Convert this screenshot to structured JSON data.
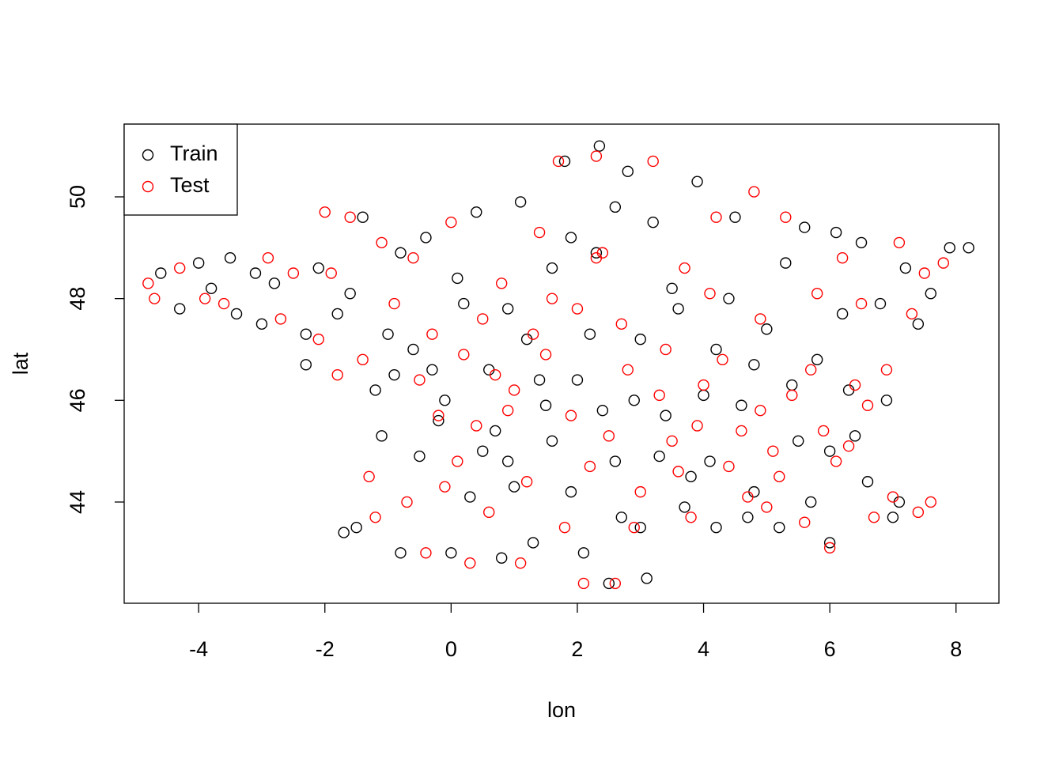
{
  "chart_data": {
    "type": "scatter",
    "x_label": "lon",
    "y_label": "lat",
    "xlim": [
      -5.18,
      8.68
    ],
    "ylim": [
      42.01,
      51.43
    ],
    "xticks": [
      -4,
      -2,
      0,
      2,
      4,
      6,
      8
    ],
    "yticks": [
      44,
      46,
      48,
      50
    ],
    "grid": false,
    "legend": "top-left",
    "series": [
      {
        "name": "Train",
        "color": "#000000",
        "x": [
          -4.6,
          -4.3,
          -4.0,
          -3.8,
          -3.5,
          -3.4,
          -3.1,
          -3.0,
          -2.8,
          -2.3,
          -2.3,
          -2.1,
          -1.8,
          -1.6,
          -1.4,
          -1.2,
          -1.0,
          -0.8,
          -0.6,
          -0.4,
          -0.3,
          -0.2,
          0.1,
          0.2,
          0.4,
          0.6,
          0.7,
          0.9,
          1.1,
          1.2,
          1.3,
          1.5,
          1.6,
          1.8,
          1.9,
          2.0,
          2.1,
          2.2,
          2.3,
          2.35,
          2.5,
          2.6,
          2.8,
          2.9,
          3.0,
          3.1,
          3.2,
          3.4,
          3.6,
          3.8,
          3.9,
          4.0,
          4.2,
          4.4,
          4.5,
          4.6,
          4.8,
          5.0,
          5.2,
          5.3,
          5.5,
          5.6,
          5.8,
          6.0,
          6.1,
          6.2,
          6.4,
          6.5,
          6.6,
          6.8,
          6.9,
          7.0,
          7.2,
          7.4,
          7.6,
          7.9,
          8.2,
          -0.5,
          -0.8,
          -1.5,
          -1.7,
          0.0,
          0.3,
          0.8,
          1.6,
          2.4,
          3.3,
          4.1,
          5.4,
          6.3,
          5.7,
          4.7,
          3.7,
          2.7,
          1.0,
          -0.1,
          -1.1,
          0.5,
          1.9,
          2.6,
          3.5,
          4.2,
          0.9,
          -0.9,
          1.4,
          3.0,
          4.8,
          6.0,
          7.1
        ],
        "values": [
          48.5,
          47.8,
          48.7,
          48.2,
          48.8,
          47.7,
          48.5,
          47.5,
          48.3,
          47.3,
          46.7,
          48.6,
          47.7,
          48.1,
          49.6,
          46.2,
          47.3,
          48.9,
          47.0,
          49.2,
          46.6,
          45.6,
          48.4,
          47.9,
          49.7,
          46.6,
          45.4,
          44.8,
          49.9,
          47.2,
          43.2,
          45.9,
          48.6,
          50.7,
          44.2,
          46.4,
          43.0,
          47.3,
          48.9,
          51.0,
          42.4,
          44.8,
          50.5,
          46.0,
          43.5,
          42.5,
          49.5,
          45.7,
          47.8,
          44.5,
          50.3,
          46.1,
          43.5,
          48.0,
          49.6,
          45.9,
          44.2,
          47.4,
          43.5,
          48.7,
          45.2,
          49.4,
          46.8,
          43.2,
          49.3,
          47.7,
          45.3,
          49.1,
          44.4,
          47.9,
          46.0,
          43.7,
          48.6,
          47.5,
          48.1,
          49.0,
          49.0,
          44.9,
          43.0,
          43.5,
          43.4,
          43.0,
          44.1,
          42.9,
          45.2,
          45.8,
          44.9,
          44.8,
          46.3,
          46.2,
          44.0,
          43.7,
          43.9,
          43.7,
          44.3,
          46.0,
          45.3,
          45.0,
          49.2,
          49.8,
          48.2,
          47.0,
          47.8,
          46.5,
          46.4,
          47.2,
          46.7,
          45.0,
          44.0
        ]
      },
      {
        "name": "Test",
        "color": "#ff0000",
        "x": [
          -4.8,
          -4.7,
          -4.3,
          -3.9,
          -3.6,
          -2.9,
          -2.7,
          -2.5,
          -2.1,
          -2.0,
          -1.8,
          -1.6,
          -1.4,
          -1.3,
          -1.1,
          -0.9,
          -0.7,
          -0.5,
          -0.4,
          -0.2,
          0.0,
          0.2,
          0.3,
          0.5,
          0.6,
          0.8,
          0.9,
          1.1,
          1.2,
          1.4,
          1.5,
          1.7,
          1.8,
          2.0,
          2.1,
          2.3,
          2.3,
          2.4,
          2.5,
          2.6,
          2.8,
          3.0,
          3.2,
          3.4,
          3.5,
          3.7,
          3.8,
          4.0,
          4.2,
          4.4,
          4.6,
          4.8,
          4.9,
          5.0,
          5.1,
          5.3,
          5.4,
          5.6,
          5.8,
          5.9,
          6.0,
          6.2,
          6.3,
          6.5,
          6.6,
          6.7,
          6.9,
          7.0,
          7.1,
          7.3,
          7.4,
          7.5,
          7.6,
          7.8,
          -1.2,
          -0.1,
          0.4,
          1.0,
          2.9,
          3.9,
          4.3,
          5.2,
          6.1,
          4.7,
          3.3,
          2.2,
          1.6,
          0.7,
          -0.3,
          3.6,
          4.9,
          5.7,
          6.4,
          2.7,
          1.3,
          -0.6,
          -1.9,
          0.1,
          1.9,
          4.1
        ],
        "values": [
          48.3,
          48.0,
          48.6,
          48.0,
          47.9,
          48.8,
          47.6,
          48.5,
          47.2,
          49.7,
          46.5,
          49.6,
          46.8,
          44.5,
          49.1,
          47.9,
          44.0,
          46.4,
          43.0,
          45.7,
          49.5,
          46.9,
          42.8,
          47.6,
          43.8,
          48.3,
          45.8,
          42.8,
          44.4,
          49.3,
          46.9,
          50.7,
          43.5,
          47.8,
          42.4,
          50.8,
          48.8,
          48.9,
          45.3,
          42.4,
          46.6,
          44.2,
          50.7,
          47.0,
          45.2,
          48.6,
          43.7,
          46.3,
          49.6,
          44.7,
          45.4,
          50.1,
          47.6,
          43.9,
          45.0,
          49.6,
          46.1,
          43.6,
          48.1,
          45.4,
          43.1,
          48.8,
          45.1,
          47.9,
          45.9,
          43.7,
          46.6,
          44.1,
          49.1,
          47.7,
          43.8,
          48.5,
          44.0,
          48.7,
          43.7,
          44.3,
          45.5,
          46.2,
          43.5,
          45.5,
          46.8,
          44.5,
          44.8,
          44.1,
          46.1,
          44.7,
          48.0,
          46.5,
          47.3,
          44.6,
          45.8,
          46.6,
          46.3,
          47.5,
          47.3,
          48.8,
          48.5,
          44.8,
          45.7,
          48.1
        ]
      }
    ]
  }
}
